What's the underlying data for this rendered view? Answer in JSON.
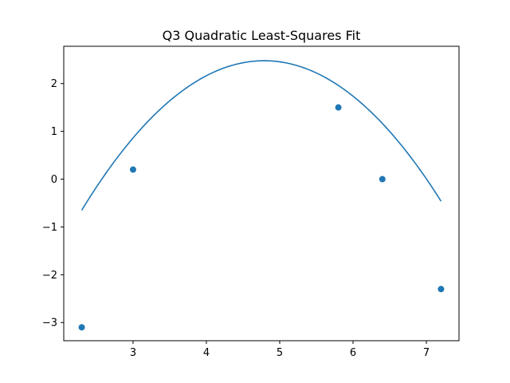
{
  "chart_data": {
    "type": "scatter",
    "title": "Q3 Quadratic Least-Squares Fit",
    "xlabel": "",
    "ylabel": "",
    "xlim": [
      2.055,
      7.445
    ],
    "ylim": [
      -3.38,
      2.78
    ],
    "xticks": [
      3,
      4,
      5,
      6,
      7
    ],
    "yticks": [
      -3,
      -2,
      -1,
      0,
      1,
      2
    ],
    "grid": false,
    "color": "#1f77b4",
    "series": [
      {
        "kind": "points",
        "x": [
          2.3,
          3.0,
          5.8,
          6.4,
          7.2
        ],
        "y": [
          -3.1,
          0.2,
          1.5,
          0.0,
          -2.3
        ]
      },
      {
        "kind": "fit-curve",
        "equation": {
          "a": -0.5052,
          "b": 4.838,
          "c": -9.105
        },
        "x_range": [
          2.3,
          7.2
        ]
      }
    ]
  }
}
